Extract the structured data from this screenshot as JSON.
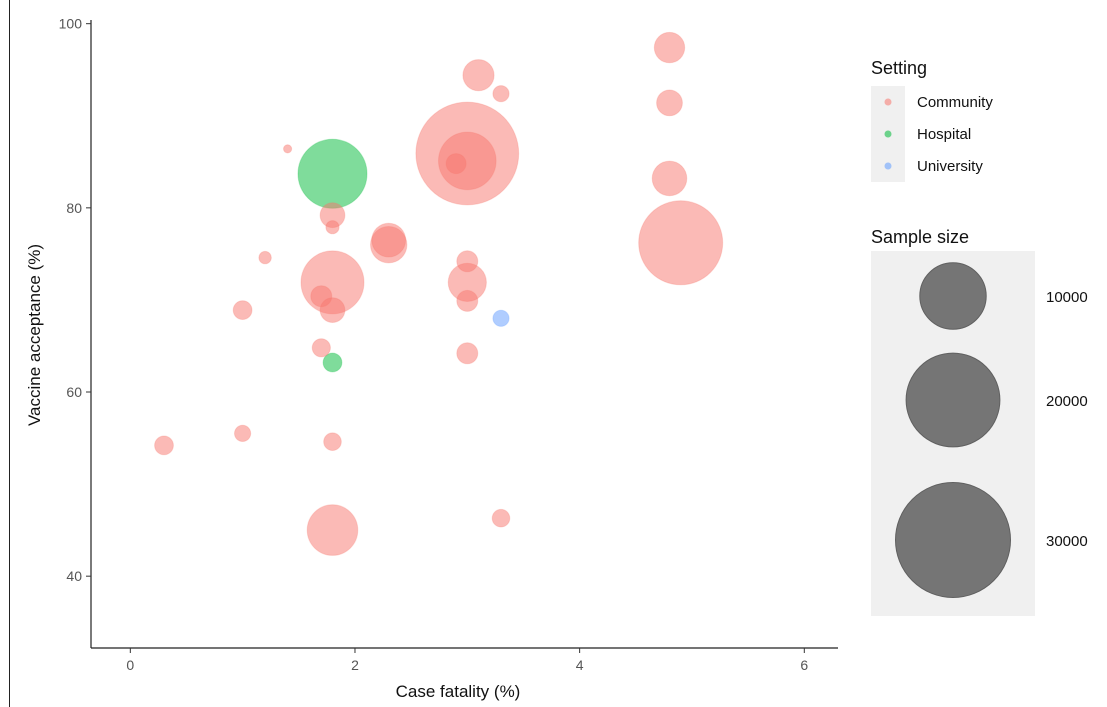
{
  "chart_data": {
    "type": "scatter",
    "xlabel": "Case fatality (%)",
    "ylabel": "Vaccine acceptance (%)",
    "xlim": [
      -0.35,
      6.3
    ],
    "ylim": [
      32.2,
      100.4
    ],
    "x_ticks": [
      0,
      2,
      4,
      6
    ],
    "y_ticks": [
      40,
      60,
      80,
      100
    ],
    "grid": false,
    "legend_position": "right",
    "color_legend": {
      "title": "Setting",
      "entries": [
        {
          "label": "Community",
          "color": "#F8766D"
        },
        {
          "label": "Hospital",
          "color": "#00BA38"
        },
        {
          "label": "University",
          "color": "#619CFF"
        }
      ]
    },
    "size_legend": {
      "title": "Sample size",
      "entries": [
        {
          "label": "10000",
          "value": 10000
        },
        {
          "label": "20000",
          "value": 20000
        },
        {
          "label": "30000",
          "value": 30000
        }
      ]
    },
    "series": [
      {
        "name": "Community",
        "color": "#F8766D",
        "points": [
          {
            "x": 4.8,
            "y": 97.4,
            "size": 2100
          },
          {
            "x": 3.1,
            "y": 94.4,
            "size": 2200
          },
          {
            "x": 3.3,
            "y": 92.4,
            "size": 600
          },
          {
            "x": 4.8,
            "y": 91.4,
            "size": 1500
          },
          {
            "x": 1.4,
            "y": 86.4,
            "size": 150
          },
          {
            "x": 3.0,
            "y": 85.9,
            "size": 24000
          },
          {
            "x": 3.0,
            "y": 85.1,
            "size": 7500
          },
          {
            "x": 2.9,
            "y": 84.8,
            "size": 900
          },
          {
            "x": 4.8,
            "y": 83.2,
            "size": 2700
          },
          {
            "x": 1.8,
            "y": 79.2,
            "size": 1400
          },
          {
            "x": 1.8,
            "y": 77.9,
            "size": 400
          },
          {
            "x": 2.3,
            "y": 76.5,
            "size": 2600
          },
          {
            "x": 2.3,
            "y": 76.0,
            "size": 3000
          },
          {
            "x": 4.9,
            "y": 76.2,
            "size": 16000
          },
          {
            "x": 1.2,
            "y": 74.6,
            "size": 350
          },
          {
            "x": 3.0,
            "y": 74.2,
            "size": 1000
          },
          {
            "x": 3.0,
            "y": 71.9,
            "size": 3300
          },
          {
            "x": 1.8,
            "y": 71.9,
            "size": 9000
          },
          {
            "x": 1.7,
            "y": 70.4,
            "size": 1000
          },
          {
            "x": 3.0,
            "y": 69.9,
            "size": 1000
          },
          {
            "x": 1.8,
            "y": 68.9,
            "size": 1400
          },
          {
            "x": 1.0,
            "y": 68.9,
            "size": 800
          },
          {
            "x": 1.7,
            "y": 64.8,
            "size": 750
          },
          {
            "x": 3.0,
            "y": 64.2,
            "size": 1000
          },
          {
            "x": 1.0,
            "y": 55.5,
            "size": 600
          },
          {
            "x": 1.8,
            "y": 54.6,
            "size": 700
          },
          {
            "x": 0.3,
            "y": 54.2,
            "size": 800
          },
          {
            "x": 3.3,
            "y": 46.3,
            "size": 700
          },
          {
            "x": 1.8,
            "y": 45.0,
            "size": 5800
          }
        ]
      },
      {
        "name": "Hospital",
        "color": "#00BA38",
        "points": [
          {
            "x": 1.8,
            "y": 83.7,
            "size": 10800
          },
          {
            "x": 1.8,
            "y": 63.2,
            "size": 800
          }
        ]
      },
      {
        "name": "University",
        "color": "#619CFF",
        "points": [
          {
            "x": 3.3,
            "y": 68.0,
            "size": 600
          }
        ]
      }
    ]
  }
}
